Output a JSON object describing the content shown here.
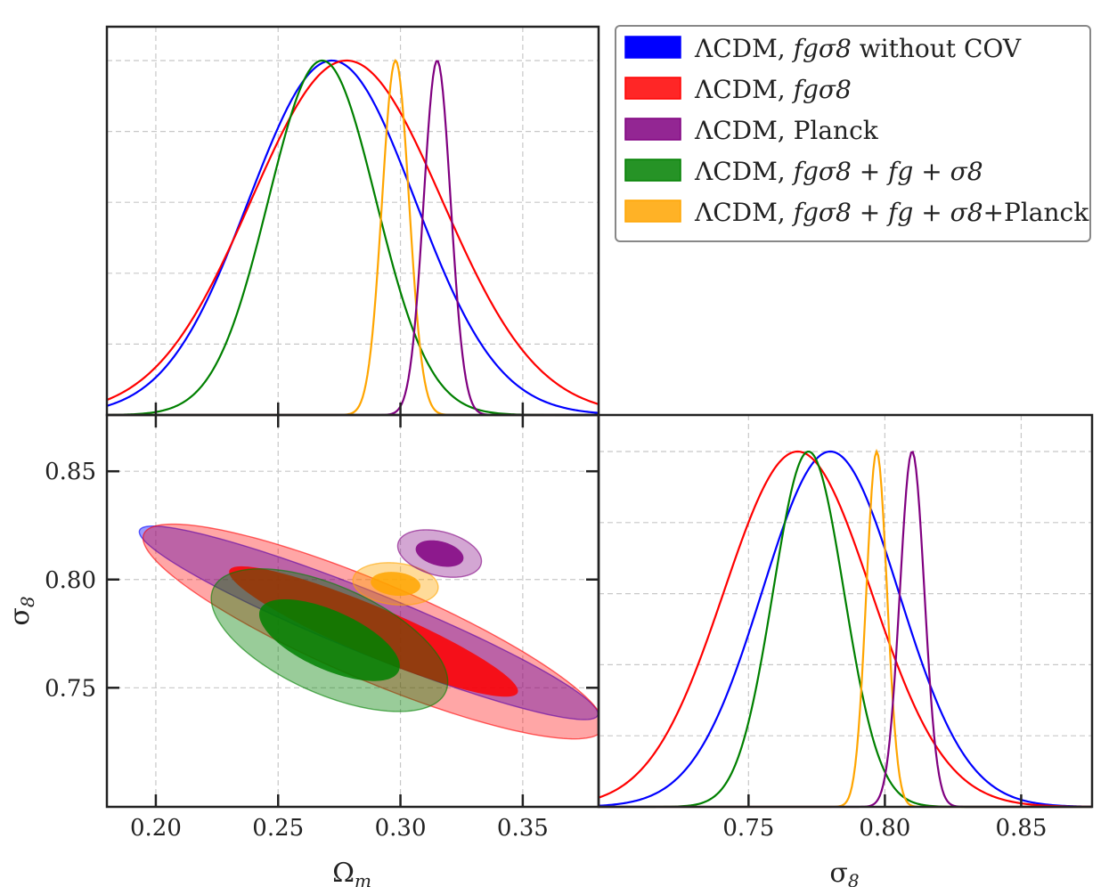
{
  "chart_data": {
    "type": "triangle-corner",
    "colors": {
      "lcdm_fs8_nocov": "#0000ff",
      "lcdm_fs8": "#ff0000",
      "lcdm_planck": "#800080",
      "lcdm_fs8_fg_s8": "#008000",
      "lcdm_fs8_fg_s8_planck": "#ffa500"
    },
    "legend": {
      "placement": "top-right",
      "entries": [
        {
          "key": "lcdm_fs8_nocov",
          "prefix": "ΛCDM, ",
          "math": "fgσ8",
          "suffix": " without COV"
        },
        {
          "key": "lcdm_fs8",
          "prefix": "ΛCDM, ",
          "math": "fgσ8",
          "suffix": ""
        },
        {
          "key": "lcdm_planck",
          "prefix": "ΛCDM, Planck",
          "math": "",
          "suffix": ""
        },
        {
          "key": "lcdm_fs8_fg_s8",
          "prefix": "ΛCDM, ",
          "math": "fgσ8 + fg + σ8",
          "suffix": ""
        },
        {
          "key": "lcdm_fs8_fg_s8_planck",
          "prefix": "ΛCDM, ",
          "math": "fgσ8 + fg + σ8",
          "suffix": "+Planck"
        }
      ]
    },
    "axes": {
      "omega_m": {
        "label": "Ω",
        "sub": "m",
        "range": [
          0.18,
          0.381
        ],
        "ticks": [
          0.2,
          0.25,
          0.3,
          0.35
        ],
        "tick_labels": [
          "0.20",
          "0.25",
          "0.30",
          "0.35"
        ]
      },
      "sigma8": {
        "label": "σ",
        "sub": "8",
        "range": [
          0.695,
          0.876
        ],
        "ticks": [
          0.75,
          0.8,
          0.85
        ],
        "tick_labels": [
          "0.75",
          "0.80",
          "0.85"
        ]
      }
    },
    "grid": true,
    "marginals_omega_m": [
      {
        "key": "lcdm_fs8_nocov",
        "mean": 0.272,
        "sigma": 0.034
      },
      {
        "key": "lcdm_fs8",
        "mean": 0.278,
        "sigma_left": 0.033,
        "sigma_right": 0.039
      },
      {
        "key": "lcdm_fs8_fg_s8",
        "mean": 0.268,
        "sigma_left": 0.018,
        "sigma_right": 0.022
      },
      {
        "key": "lcdm_fs8_fg_s8_planck",
        "mean": 0.298,
        "sigma": 0.0055
      },
      {
        "key": "lcdm_planck",
        "mean": 0.315,
        "sigma": 0.0055
      }
    ],
    "marginals_sigma8": [
      {
        "key": "lcdm_fs8_nocov",
        "mean": 0.78,
        "sigma_left": 0.022,
        "sigma_right": 0.025
      },
      {
        "key": "lcdm_fs8",
        "mean": 0.768,
        "sigma_left": 0.021,
        "sigma_right": 0.027
      },
      {
        "key": "lcdm_fs8_fg_s8",
        "mean": 0.772,
        "sigma": 0.013
      },
      {
        "key": "lcdm_fs8_fg_s8_planck",
        "mean": 0.797,
        "sigma": 0.0038
      },
      {
        "key": "lcdm_planck",
        "mean": 0.81,
        "sigma": 0.0045
      }
    ],
    "contours_2d": [
      {
        "key": "lcdm_fs8_nocov",
        "mean": [
          0.287,
          0.78
        ],
        "levels": [
          {
            "semi_major": 0.101,
            "semi_minor": 0.0125,
            "angle_deg": -22
          }
        ],
        "alpha": 0.4
      },
      {
        "key": "lcdm_fs8",
        "mean": [
          0.289,
          0.776
        ],
        "levels": [
          {
            "semi_major": 0.102,
            "semi_minor": 0.02,
            "angle_deg": -23
          },
          {
            "semi_major": 0.064,
            "semi_minor": 0.01,
            "angle_deg": -23
          }
        ],
        "alpha": [
          0.35,
          0.85
        ]
      },
      {
        "key": "lcdm_fs8_fg_s8",
        "mean": [
          0.271,
          0.772
        ],
        "levels": [
          {
            "semi_major": 0.052,
            "semi_minor": 0.022,
            "angle_deg": -24
          },
          {
            "semi_major": 0.031,
            "semi_minor": 0.012,
            "angle_deg": -24
          }
        ],
        "alpha": [
          0.4,
          0.85
        ]
      },
      {
        "key": "lcdm_fs8_fg_s8_planck",
        "mean": [
          0.298,
          0.798
        ],
        "levels": [
          {
            "semi_major": 0.0175,
            "semi_minor": 0.0085,
            "angle_deg": -6
          },
          {
            "semi_major": 0.0102,
            "semi_minor": 0.0048,
            "angle_deg": -6
          }
        ],
        "alpha": [
          0.4,
          0.85
        ]
      },
      {
        "key": "lcdm_planck",
        "mean": [
          0.316,
          0.812
        ],
        "levels": [
          {
            "semi_major": 0.0175,
            "semi_minor": 0.009,
            "angle_deg": -14
          },
          {
            "semi_major": 0.01,
            "semi_minor": 0.005,
            "angle_deg": -14
          }
        ],
        "alpha": [
          0.35,
          0.85
        ]
      }
    ]
  }
}
